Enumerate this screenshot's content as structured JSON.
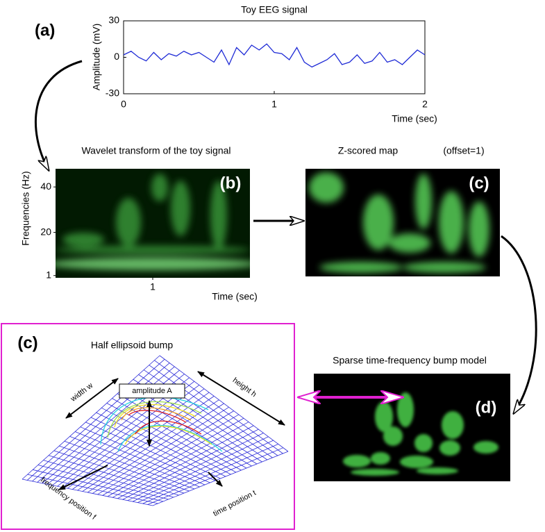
{
  "panel_a": {
    "label": "(a)",
    "title": "Toy EEG signal",
    "ylabel": "Amplitude (mV)",
    "xlabel": "Time (sec)",
    "ylim": [
      -30,
      30
    ],
    "yticks": [
      30,
      0,
      -30
    ],
    "xlim": [
      0,
      2
    ],
    "xticks": [
      0,
      1,
      2
    ],
    "x": [
      0,
      0.05,
      0.1,
      0.15,
      0.2,
      0.25,
      0.3,
      0.35,
      0.4,
      0.45,
      0.5,
      0.55,
      0.6,
      0.65,
      0.7,
      0.75,
      0.8,
      0.85,
      0.9,
      0.95,
      1,
      1.05,
      1.1,
      1.15,
      1.2,
      1.25,
      1.3,
      1.35,
      1.4,
      1.45,
      1.5,
      1.55,
      1.6,
      1.65,
      1.7,
      1.75,
      1.8,
      1.85,
      1.9,
      1.95,
      2
    ],
    "values": [
      2,
      5,
      0,
      -3,
      4,
      -2,
      3,
      1,
      5,
      2,
      4,
      0,
      -4,
      6,
      -6,
      8,
      2,
      10,
      6,
      11,
      4,
      3,
      -2,
      8,
      -4,
      -8,
      -5,
      -2,
      3,
      -6,
      -4,
      2,
      -5,
      -3,
      4,
      -4,
      -2,
      -6,
      0,
      6,
      2
    ],
    "color": "#1f2bd6"
  },
  "panel_b": {
    "label": "(b)",
    "title": "Wavelet transform of the toy signal",
    "ylabel": "Frequencies (Hz)",
    "xlabel": "Time (sec)",
    "ylim": [
      0,
      48
    ],
    "yticks": [
      40,
      20,
      1
    ],
    "xlim": [
      0,
      2
    ],
    "xticks": [
      1
    ]
  },
  "panel_c": {
    "label": "(c)",
    "title": "Z-scored map",
    "note": "(offset=1)"
  },
  "panel_d": {
    "label": "(d)",
    "title": "Sparse time-frequency bump model"
  },
  "panel_e": {
    "label": "(c)",
    "title": "Half ellipsoid bump",
    "width": "width w",
    "height": "height h",
    "amplitude": "amplitude A",
    "frequency": "frequency position f",
    "time": "time position t"
  }
}
